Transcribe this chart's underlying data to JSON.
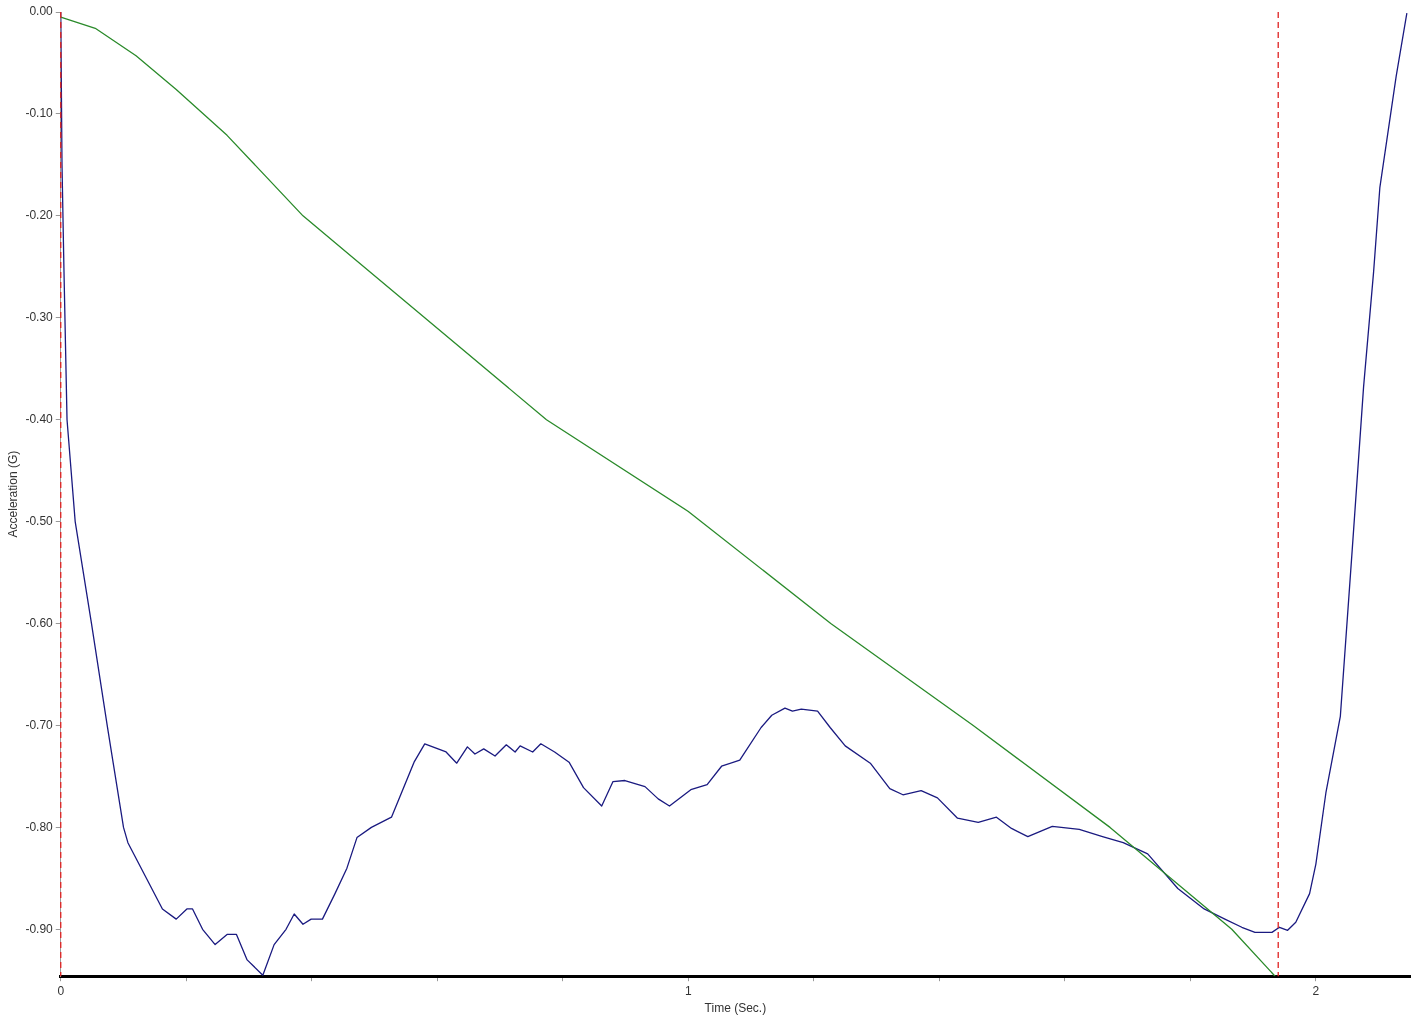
{
  "chart_data": {
    "type": "line",
    "xlabel": "Time (Sec.)",
    "ylabel": "Acceleration (G)",
    "xlim": [
      0,
      2.15
    ],
    "ylim": [
      -0.946,
      0
    ],
    "xticks": [
      {
        "value": 0,
        "label": "0"
      },
      {
        "value": 0.2,
        "label": null
      },
      {
        "value": 0.4,
        "label": null
      },
      {
        "value": 0.6,
        "label": null
      },
      {
        "value": 0.8,
        "label": null
      },
      {
        "value": 1,
        "label": "1"
      },
      {
        "value": 1.2,
        "label": null
      },
      {
        "value": 1.4,
        "label": null
      },
      {
        "value": 1.6,
        "label": null
      },
      {
        "value": 1.8,
        "label": null
      },
      {
        "value": 2,
        "label": "2"
      }
    ],
    "yticks": [
      {
        "value": 0,
        "label": "0.00"
      },
      {
        "value": -0.1,
        "label": "-0.10"
      },
      {
        "value": -0.2,
        "label": "-0.20"
      },
      {
        "value": -0.3,
        "label": "-0.30"
      },
      {
        "value": -0.4,
        "label": "-0.40"
      },
      {
        "value": -0.5,
        "label": "-0.50"
      },
      {
        "value": -0.6,
        "label": "-0.60"
      },
      {
        "value": -0.7,
        "label": "-0.70"
      },
      {
        "value": -0.8,
        "label": "-0.80"
      },
      {
        "value": -0.9,
        "label": "-0.90"
      }
    ],
    "grid": false,
    "legend": false,
    "marker": "none",
    "line_style": "solid",
    "ref_lines": [
      {
        "axis": "x",
        "value": 0,
        "color": "#e02020",
        "line_style": "dashed"
      },
      {
        "axis": "x",
        "value": 1.94,
        "color": "#e02020",
        "line_style": "dashed"
      }
    ],
    "series": [
      {
        "color": "#2a8a2a",
        "x": [
          0,
          0.055,
          0.12,
          0.184,
          0.265,
          0.386,
          0.58,
          0.774,
          1.0,
          1.227,
          1.454,
          1.672,
          1.866,
          1.935
        ],
        "values": [
          -0.005,
          -0.016,
          -0.043,
          -0.076,
          -0.121,
          -0.2,
          -0.3,
          -0.4,
          -0.49,
          -0.6,
          -0.7,
          -0.8,
          -0.9,
          -0.946
        ]
      },
      {
        "color": "#1a1a80",
        "x": [
          0,
          0.002,
          0.005,
          0.01,
          0.023,
          0.049,
          0.074,
          0.1,
          0.107,
          0.162,
          0.184,
          0.201,
          0.21,
          0.226,
          0.246,
          0.265,
          0.28,
          0.297,
          0.322,
          0.34,
          0.359,
          0.372,
          0.386,
          0.399,
          0.417,
          0.437,
          0.456,
          0.472,
          0.495,
          0.527,
          0.563,
          0.58,
          0.614,
          0.631,
          0.648,
          0.66,
          0.674,
          0.692,
          0.71,
          0.724,
          0.732,
          0.752,
          0.765,
          0.787,
          0.81,
          0.833,
          0.862,
          0.88,
          0.899,
          0.931,
          0.952,
          0.97,
          1.004,
          1.03,
          1.053,
          1.082,
          1.116,
          1.133,
          1.154,
          1.166,
          1.18,
          1.206,
          1.226,
          1.25,
          1.29,
          1.321,
          1.342,
          1.371,
          1.397,
          1.429,
          1.462,
          1.491,
          1.515,
          1.541,
          1.58,
          1.623,
          1.66,
          1.693,
          1.732,
          1.78,
          1.822,
          1.855,
          1.882,
          1.903,
          1.93,
          1.942,
          1.955,
          1.968,
          1.99,
          2.0,
          2.016,
          2.039,
          2.058,
          2.076,
          2.092,
          2.102,
          2.113,
          2.128,
          2.145
        ],
        "values": [
          0,
          -0.15,
          -0.25,
          -0.4,
          -0.5,
          -0.6,
          -0.7,
          -0.8,
          -0.815,
          -0.88,
          -0.89,
          -0.88,
          -0.88,
          -0.9,
          -0.915,
          -0.905,
          -0.905,
          -0.93,
          -0.945,
          -0.915,
          -0.9,
          -0.885,
          -0.895,
          -0.89,
          -0.89,
          -0.865,
          -0.84,
          -0.81,
          -0.8,
          -0.79,
          -0.736,
          -0.718,
          -0.726,
          -0.737,
          -0.721,
          -0.728,
          -0.723,
          -0.73,
          -0.719,
          -0.726,
          -0.72,
          -0.726,
          -0.718,
          -0.726,
          -0.736,
          -0.761,
          -0.779,
          -0.755,
          -0.754,
          -0.76,
          -0.772,
          -0.779,
          -0.763,
          -0.758,
          -0.74,
          -0.734,
          -0.702,
          -0.69,
          -0.683,
          -0.686,
          -0.684,
          -0.686,
          -0.702,
          -0.72,
          -0.737,
          -0.762,
          -0.768,
          -0.764,
          -0.771,
          -0.791,
          -0.795,
          -0.79,
          -0.801,
          -0.809,
          -0.799,
          -0.802,
          -0.809,
          -0.815,
          -0.826,
          -0.86,
          -0.88,
          -0.89,
          -0.898,
          -0.903,
          -0.903,
          -0.898,
          -0.901,
          -0.893,
          -0.865,
          -0.836,
          -0.766,
          -0.691,
          -0.527,
          -0.368,
          -0.255,
          -0.172,
          -0.126,
          -0.063,
          -0.001
        ]
      }
    ]
  }
}
